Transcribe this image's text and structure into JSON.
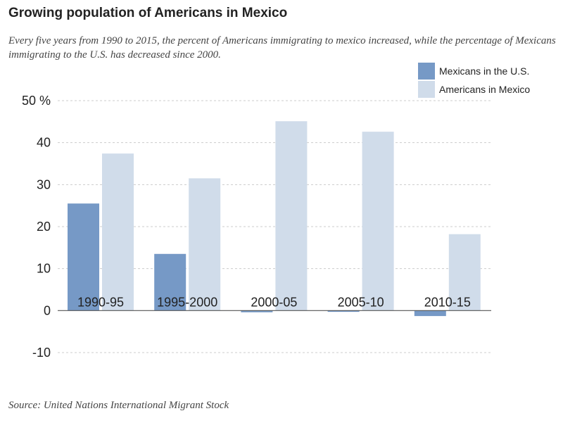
{
  "title": "Growing population of Americans in Mexico",
  "subtitle": "Every five years from 1990 to 2015, the percent of Americans immigrating to mexico increased, while the percentage of Mexicans immigrating to the U.S. has decreased since 2000.",
  "source": "Source: United Nations International Migrant Stock",
  "colors": {
    "mexicans": "#7699c6",
    "americans": "#d0dcea",
    "grid": "#cccccc",
    "axis": "#555555"
  },
  "chart_data": {
    "type": "bar",
    "categories": [
      "1990-95",
      "1995-2000",
      "2000-05",
      "2005-10",
      "2010-15"
    ],
    "series": [
      {
        "name": "Mexicans in the U.S.",
        "values": [
          25.5,
          13.5,
          -0.4,
          -0.3,
          -1.3
        ]
      },
      {
        "name": "Americans in Mexico",
        "values": [
          37.4,
          31.5,
          45.1,
          42.6,
          18.2
        ]
      }
    ],
    "ylim": [
      -10,
      50
    ],
    "yticks": [
      -10,
      0,
      10,
      20,
      30,
      40,
      50
    ],
    "ytick_labels": [
      "-10",
      "0",
      "10",
      "20",
      "30",
      "40",
      "50 %"
    ],
    "grid": true,
    "legend_position": "top-right"
  }
}
